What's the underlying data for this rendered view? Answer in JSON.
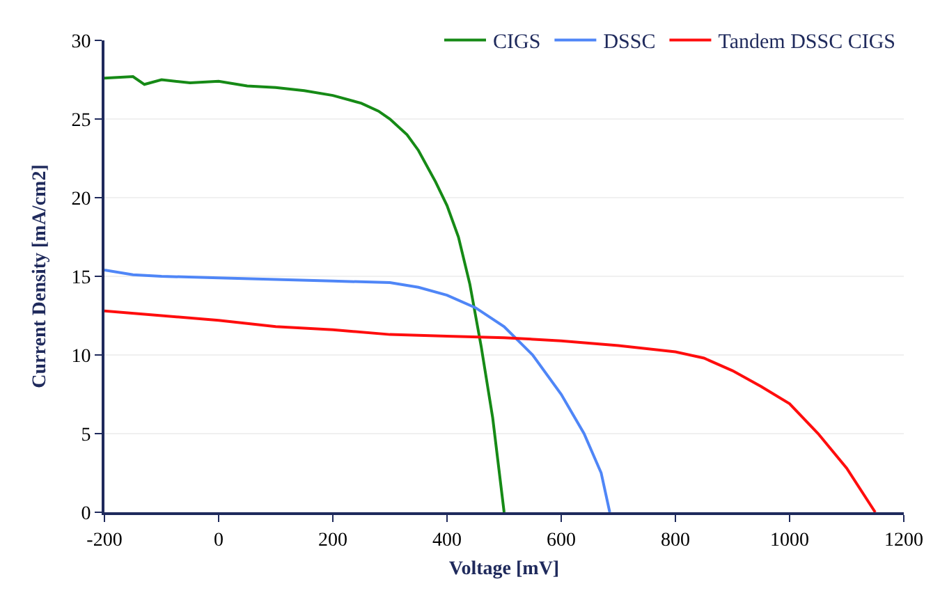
{
  "chart_data": {
    "type": "line",
    "xlabel": "Voltage [mV]",
    "ylabel": "Current Density [mA/cm2]",
    "xlim": [
      -200,
      1200
    ],
    "xticks": [
      -200,
      0,
      200,
      400,
      600,
      800,
      1000,
      1200
    ],
    "ylim": [
      0,
      30
    ],
    "yticks": [
      0,
      5,
      10,
      15,
      20,
      25,
      30
    ],
    "grid": "y",
    "legend": "top",
    "marker": "none",
    "line_style": "solid",
    "series": [
      {
        "name": "CIGS",
        "color": "#168a16",
        "x": [
          -200,
          -150,
          -130,
          -100,
          -50,
          0,
          50,
          100,
          150,
          200,
          250,
          280,
          300,
          330,
          350,
          380,
          400,
          420,
          440,
          460,
          480,
          500
        ],
        "values": [
          27.6,
          27.7,
          27.2,
          27.5,
          27.3,
          27.4,
          27.1,
          27.0,
          26.8,
          26.5,
          26.0,
          25.5,
          25.0,
          24.0,
          23.0,
          21.0,
          19.5,
          17.5,
          14.5,
          10.5,
          6.0,
          0
        ]
      },
      {
        "name": "DSSC",
        "color": "#4f86f7",
        "x": [
          -200,
          -150,
          -100,
          0,
          100,
          200,
          300,
          350,
          400,
          450,
          500,
          550,
          600,
          640,
          670,
          685
        ],
        "values": [
          15.4,
          15.1,
          15.0,
          14.9,
          14.8,
          14.7,
          14.6,
          14.3,
          13.8,
          13.0,
          11.8,
          10.0,
          7.5,
          5.0,
          2.5,
          0
        ]
      },
      {
        "name": "Tandem DSSC CIGS",
        "color": "#ff0d0d",
        "x": [
          -200,
          -100,
          0,
          100,
          200,
          300,
          400,
          500,
          600,
          700,
          800,
          850,
          900,
          950,
          1000,
          1050,
          1100,
          1150
        ],
        "values": [
          12.8,
          12.5,
          12.2,
          11.8,
          11.6,
          11.3,
          11.2,
          11.1,
          10.9,
          10.6,
          10.2,
          9.8,
          9.0,
          8.0,
          6.9,
          5.0,
          2.8,
          0
        ]
      }
    ]
  }
}
